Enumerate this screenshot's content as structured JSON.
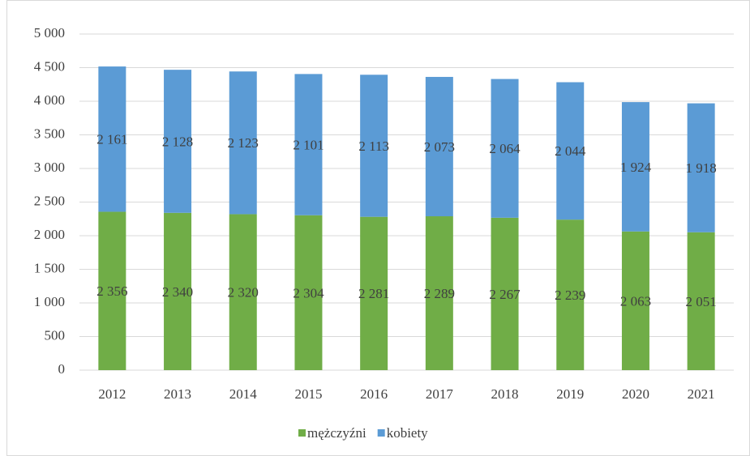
{
  "chart_data": {
    "type": "stacked_bar",
    "categories": [
      "2012",
      "2013",
      "2014",
      "2015",
      "2016",
      "2017",
      "2018",
      "2019",
      "2020",
      "2021"
    ],
    "series": [
      {
        "name": "mężczyźni",
        "color": "#70ad47",
        "values": [
          2356,
          2340,
          2320,
          2304,
          2281,
          2289,
          2267,
          2239,
          2063,
          2051
        ],
        "value_labels": [
          "2 356",
          "2 340",
          "2 320",
          "2 304",
          "2 281",
          "2 289",
          "2 267",
          "2 239",
          "2 063",
          "2 051"
        ]
      },
      {
        "name": "kobiety",
        "color": "#5b9bd5",
        "values": [
          2161,
          2128,
          2123,
          2101,
          2113,
          2073,
          2064,
          2044,
          1924,
          1918
        ],
        "value_labels": [
          "2 161",
          "2 128",
          "2 123",
          "2 101",
          "2 113",
          "2 073",
          "2 064",
          "2 044",
          "1 924",
          "1 918"
        ]
      }
    ],
    "ylim": [
      0,
      5000
    ],
    "yticks": [
      0,
      500,
      {
        "value": 1000,
        "label": "1 000"
      },
      {
        "value": 1500,
        "label": "1 500"
      },
      {
        "value": 2000,
        "label": "2 000"
      },
      {
        "value": 2500,
        "label": "2 500"
      },
      {
        "value": 3000,
        "label": "3 000"
      },
      {
        "value": 3500,
        "label": "3 500"
      },
      {
        "value": 4000,
        "label": "4 000"
      },
      {
        "value": 4500,
        "label": "4 500"
      },
      {
        "value": 5000,
        "label": "5 000"
      }
    ],
    "grid": true,
    "legend": "bottom"
  }
}
